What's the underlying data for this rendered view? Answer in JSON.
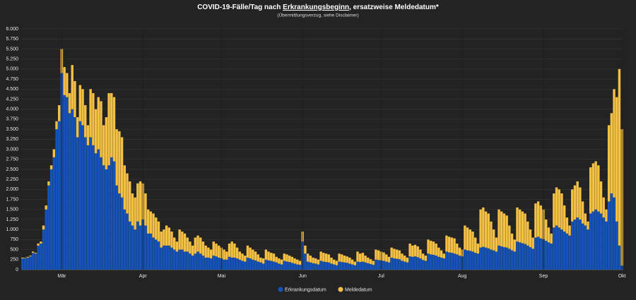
{
  "chart_data": {
    "type": "stacked_bar",
    "title": [
      "COVID-19-Fälle/Tag nach ",
      "Erkrankungsbeginn",
      ", ersatzweise Meldedatum*"
    ],
    "subtitle": "(Übermittlungsverzug, siehe Disclaimer)",
    "categories": [
      null,
      null,
      null,
      null,
      null,
      null,
      null,
      null,
      null,
      null,
      null,
      null,
      null,
      null,
      null,
      "Mär",
      null,
      null,
      null,
      null,
      null,
      null,
      null,
      null,
      null,
      null,
      null,
      null,
      null,
      null,
      null,
      null,
      null,
      null,
      null,
      null,
      null,
      null,
      null,
      null,
      null,
      null,
      null,
      null,
      null,
      null,
      "Apr",
      null,
      null,
      null,
      null,
      null,
      null,
      null,
      null,
      null,
      null,
      null,
      null,
      null,
      null,
      null,
      null,
      null,
      null,
      null,
      null,
      null,
      null,
      null,
      null,
      null,
      null,
      null,
      null,
      null,
      "Mai",
      null,
      null,
      null,
      null,
      null,
      null,
      null,
      null,
      null,
      null,
      null,
      null,
      null,
      null,
      null,
      null,
      null,
      null,
      null,
      null,
      null,
      null,
      null,
      null,
      null,
      null,
      null,
      null,
      null,
      null,
      "Jun",
      null,
      null,
      null,
      null,
      null,
      null,
      null,
      null,
      null,
      null,
      null,
      null,
      null,
      null,
      null,
      null,
      null,
      null,
      null,
      null,
      null,
      null,
      null,
      null,
      null,
      null,
      null,
      null,
      null,
      "Jul",
      null,
      null,
      null,
      null,
      null,
      null,
      null,
      null,
      null,
      null,
      null,
      null,
      null,
      null,
      null,
      null,
      null,
      null,
      null,
      null,
      null,
      null,
      null,
      null,
      null,
      null,
      null,
      null,
      null,
      null,
      "Aug",
      null,
      null,
      null,
      null,
      null,
      null,
      null,
      null,
      null,
      null,
      null,
      null,
      null,
      null,
      null,
      null,
      null,
      null,
      null,
      null,
      null,
      null,
      null,
      null,
      null,
      null,
      null,
      null,
      null,
      null,
      "Sep",
      null,
      null,
      null,
      null,
      null,
      null,
      null,
      null,
      null,
      null,
      null,
      null,
      null,
      null,
      null,
      null,
      null,
      null,
      null,
      null,
      null,
      null,
      null,
      null,
      null,
      null,
      null,
      null,
      null,
      "Okt"
    ],
    "series": [
      {
        "name": "Erkrankungsdatum",
        "color": "#1553b8",
        "values": [
          280,
          290,
          300,
          330,
          420,
          400,
          600,
          650,
          1000,
          1500,
          2100,
          2500,
          2800,
          3500,
          3700,
          4900,
          4350,
          4300,
          3900,
          4000,
          3800,
          3300,
          3700,
          3600,
          3300,
          3100,
          3300,
          3100,
          2900,
          3000,
          2800,
          2600,
          2500,
          2600,
          2800,
          2700,
          2100,
          1900,
          1800,
          1500,
          1400,
          1200,
          1100,
          1000,
          1200,
          1100,
          1250,
          1100,
          900,
          900,
          800,
          750,
          700,
          550,
          600,
          600,
          600,
          550,
          500,
          450,
          500,
          500,
          450,
          450,
          400,
          350,
          400,
          450,
          400,
          350,
          300,
          300,
          280,
          350,
          330,
          300,
          280,
          250,
          250,
          320,
          300,
          300,
          280,
          250,
          220,
          200,
          300,
          280,
          250,
          230,
          200,
          180,
          150,
          250,
          230,
          220,
          200,
          180,
          150,
          130,
          220,
          200,
          190,
          170,
          150,
          130,
          120,
          700,
          400,
          200,
          180,
          160,
          150,
          130,
          220,
          200,
          190,
          180,
          150,
          130,
          110,
          200,
          190,
          180,
          170,
          150,
          130,
          110,
          200,
          190,
          200,
          180,
          160,
          140,
          120,
          250,
          240,
          230,
          220,
          200,
          180,
          300,
          280,
          270,
          260,
          220,
          200,
          180,
          330,
          320,
          330,
          310,
          280,
          240,
          220,
          400,
          380,
          370,
          350,
          320,
          300,
          280,
          450,
          430,
          420,
          400,
          380,
          350,
          330,
          500,
          480,
          470,
          450,
          420,
          400,
          550,
          570,
          550,
          530,
          500,
          480,
          450,
          600,
          580,
          560,
          550,
          520,
          480,
          450,
          700,
          680,
          660,
          640,
          600,
          560,
          520,
          800,
          820,
          780,
          760,
          720,
          680,
          650,
          1050,
          1100,
          1050,
          1000,
          950,
          900,
          850,
          1200,
          1250,
          1300,
          1250,
          1150,
          1100,
          1000,
          1400,
          1450,
          1500,
          1450,
          1400,
          1300,
          1200,
          1700,
          1900,
          1800,
          1200,
          600,
          100
        ]
      },
      {
        "name": "Meldedatum",
        "color": "#f5c144",
        "values": [
          20,
          10,
          20,
          20,
          30,
          20,
          50,
          50,
          100,
          100,
          100,
          100,
          200,
          200,
          400,
          600,
          700,
          600,
          500,
          1100,
          900,
          500,
          900,
          900,
          800,
          500,
          1200,
          1300,
          1100,
          1300,
          1400,
          1000,
          1300,
          1800,
          1600,
          1600,
          1400,
          1550,
          1500,
          1100,
          1000,
          1000,
          800,
          800,
          950,
          1100,
          900,
          800,
          600,
          550,
          600,
          550,
          500,
          400,
          400,
          500,
          450,
          400,
          300,
          250,
          500,
          450,
          450,
          350,
          300,
          250,
          400,
          400,
          400,
          350,
          300,
          250,
          220,
          350,
          320,
          300,
          270,
          250,
          200,
          330,
          400,
          350,
          270,
          200,
          180,
          150,
          300,
          270,
          250,
          220,
          180,
          120,
          130,
          250,
          220,
          200,
          200,
          140,
          130,
          120,
          180,
          180,
          160,
          150,
          130,
          120,
          100,
          250,
          200,
          200,
          170,
          140,
          130,
          120,
          230,
          220,
          210,
          200,
          150,
          120,
          110,
          200,
          190,
          170,
          160,
          150,
          120,
          90,
          250,
          210,
          220,
          170,
          140,
          120,
          100,
          250,
          240,
          220,
          210,
          180,
          140,
          250,
          240,
          230,
          220,
          180,
          150,
          120,
          320,
          280,
          290,
          270,
          220,
          160,
          130,
          350,
          340,
          330,
          300,
          230,
          180,
          120,
          400,
          390,
          380,
          380,
          270,
          200,
          170,
          600,
          570,
          530,
          500,
          380,
          250,
          950,
          980,
          900,
          870,
          700,
          520,
          350,
          900,
          870,
          840,
          800,
          580,
          420,
          300,
          850,
          820,
          790,
          760,
          600,
          440,
          280,
          850,
          880,
          820,
          740,
          530,
          370,
          250,
          850,
          950,
          950,
          900,
          650,
          400,
          250,
          800,
          850,
          900,
          800,
          550,
          300,
          200,
          1150,
          1200,
          1200,
          1150,
          800,
          500,
          300,
          1900,
          2000,
          2700,
          3100,
          4400,
          3400
        ]
      }
    ],
    "ylim": [
      0,
      6000
    ],
    "yticks": [
      0,
      250,
      500,
      750,
      {
        "value": 1000,
        "label": "1.000"
      },
      {
        "value": 1250,
        "label": "1.250"
      },
      {
        "value": 1500,
        "label": "1.500"
      },
      {
        "value": 1750,
        "label": "1.750"
      },
      {
        "value": 2000,
        "label": "2.000"
      },
      {
        "value": 2250,
        "label": "2.250"
      },
      {
        "value": 2500,
        "label": "2.500"
      },
      {
        "value": 2750,
        "label": "2.750"
      },
      {
        "value": 3000,
        "label": "3.000"
      },
      {
        "value": 3250,
        "label": "3.250"
      },
      {
        "value": 3500,
        "label": "3.500"
      },
      {
        "value": 3750,
        "label": "3.750"
      },
      {
        "value": 4000,
        "label": "4.000"
      },
      {
        "value": 4250,
        "label": "4.250"
      },
      {
        "value": 4500,
        "label": "4.500"
      },
      {
        "value": 4750,
        "label": "4.750"
      },
      {
        "value": 5000,
        "label": "5.000"
      },
      {
        "value": 5250,
        "label": "5.250"
      },
      {
        "value": 5500,
        "label": "5.500"
      },
      {
        "value": 5750,
        "label": "5.750"
      },
      {
        "value": 6000,
        "label": "6.000"
      }
    ],
    "grid": true
  }
}
